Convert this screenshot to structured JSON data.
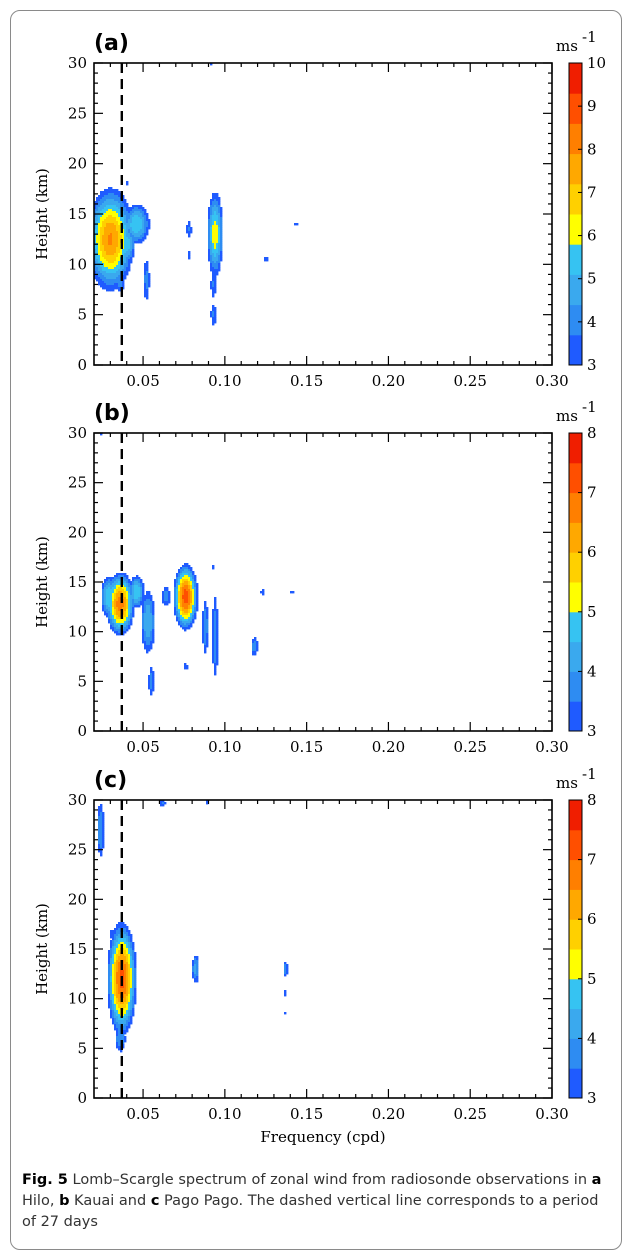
{
  "chart_data": [
    {
      "type": "heatmap",
      "panel_label": "(a)",
      "xlabel": "",
      "ylabel": "Height (km)",
      "xlim": [
        0.02,
        0.3
      ],
      "ylim": [
        0,
        30
      ],
      "x_ticks": [
        "0.05",
        "0.10",
        "0.15",
        "0.20",
        "0.25",
        "0.30"
      ],
      "y_ticks": [
        "0",
        "5",
        "10",
        "15",
        "20",
        "25",
        "30"
      ],
      "colorbar": {
        "unit": "ms",
        "unit_exp": "-1",
        "min": 3,
        "max": 10,
        "ticks": [
          "3",
          "4",
          "5",
          "6",
          "7",
          "8",
          "9",
          "10"
        ]
      },
      "dashed_line_x": 0.037,
      "features": [
        {
          "x": 0.03,
          "y": 12.5,
          "wx": 0.009,
          "wy": 3.2,
          "peak": 8.0
        },
        {
          "x": 0.046,
          "y": 14.0,
          "wx": 0.006,
          "wy": 1.5,
          "peak": 5.8
        },
        {
          "x": 0.04,
          "y": 12.0,
          "wx": 0.004,
          "wy": 1.6,
          "peak": 5.5
        },
        {
          "x": 0.036,
          "y": 8.5,
          "wx": 0.003,
          "wy": 1.3,
          "peak": 4.2
        },
        {
          "x": 0.052,
          "y": 8.5,
          "wx": 0.002,
          "wy": 2.2,
          "peak": 4.0
        },
        {
          "x": 0.094,
          "y": 13.0,
          "wx": 0.0035,
          "wy": 3.0,
          "peak": 6.3
        },
        {
          "x": 0.093,
          "y": 8.0,
          "wx": 0.002,
          "wy": 1.5,
          "peak": 3.8
        },
        {
          "x": 0.093,
          "y": 5.0,
          "wx": 0.002,
          "wy": 1.2,
          "peak": 3.8
        },
        {
          "x": 0.078,
          "y": 13.5,
          "wx": 0.0018,
          "wy": 1.0,
          "peak": 3.8
        },
        {
          "x": 0.078,
          "y": 11.0,
          "wx": 0.0012,
          "wy": 0.6,
          "peak": 3.5
        },
        {
          "x": 0.125,
          "y": 10.5,
          "wx": 0.0015,
          "wy": 0.4,
          "peak": 3.5
        },
        {
          "x": 0.143,
          "y": 14.0,
          "wx": 0.002,
          "wy": 0.3,
          "peak": 3.5
        },
        {
          "x": 0.04,
          "y": 18.0,
          "wx": 0.0012,
          "wy": 0.3,
          "peak": 3.5
        },
        {
          "x": 0.092,
          "y": 30.0,
          "wx": 0.0015,
          "wy": 0.25,
          "peak": 3.5
        }
      ]
    },
    {
      "type": "heatmap",
      "panel_label": "(b)",
      "xlabel": "",
      "ylabel": "Height (km)",
      "xlim": [
        0.02,
        0.3
      ],
      "ylim": [
        0,
        30
      ],
      "x_ticks": [
        "0.05",
        "0.10",
        "0.15",
        "0.20",
        "0.25",
        "0.30"
      ],
      "y_ticks": [
        "0",
        "5",
        "10",
        "15",
        "20",
        "25",
        "30"
      ],
      "colorbar": {
        "unit": "ms",
        "unit_exp": "-1",
        "min": 3,
        "max": 8,
        "ticks": [
          "3",
          "4",
          "5",
          "6",
          "7",
          "8"
        ]
      },
      "dashed_line_x": 0.037,
      "features": [
        {
          "x": 0.036,
          "y": 12.8,
          "wx": 0.006,
          "wy": 2.2,
          "peak": 6.8
        },
        {
          "x": 0.029,
          "y": 13.5,
          "wx": 0.004,
          "wy": 1.8,
          "peak": 5.0
        },
        {
          "x": 0.046,
          "y": 14.0,
          "wx": 0.004,
          "wy": 1.4,
          "peak": 5.0
        },
        {
          "x": 0.053,
          "y": 11.0,
          "wx": 0.004,
          "wy": 3.0,
          "peak": 4.5
        },
        {
          "x": 0.055,
          "y": 5.0,
          "wx": 0.002,
          "wy": 1.8,
          "peak": 3.8
        },
        {
          "x": 0.076,
          "y": 13.5,
          "wx": 0.005,
          "wy": 2.2,
          "peak": 7.3
        },
        {
          "x": 0.076,
          "y": 6.5,
          "wx": 0.0015,
          "wy": 0.6,
          "peak": 3.5
        },
        {
          "x": 0.064,
          "y": 13.5,
          "wx": 0.003,
          "wy": 1.2,
          "peak": 3.8
        },
        {
          "x": 0.088,
          "y": 10.5,
          "wx": 0.002,
          "wy": 3.0,
          "peak": 4.0
        },
        {
          "x": 0.094,
          "y": 9.5,
          "wx": 0.002,
          "wy": 4.5,
          "peak": 4.0
        },
        {
          "x": 0.093,
          "y": 16.5,
          "wx": 0.002,
          "wy": 0.2,
          "peak": 3.5
        },
        {
          "x": 0.118,
          "y": 8.5,
          "wx": 0.0025,
          "wy": 1.2,
          "peak": 3.8
        },
        {
          "x": 0.123,
          "y": 14.0,
          "wx": 0.0015,
          "wy": 0.4,
          "peak": 3.5
        },
        {
          "x": 0.141,
          "y": 14.0,
          "wx": 0.0015,
          "wy": 0.3,
          "peak": 3.5
        },
        {
          "x": 0.024,
          "y": 30.0,
          "wx": 0.0008,
          "wy": 0.4,
          "peak": 3.5
        }
      ]
    },
    {
      "type": "heatmap",
      "panel_label": "(c)",
      "xlabel": "Frequency (cpd)",
      "ylabel": "Height (km)",
      "xlim": [
        0.02,
        0.3
      ],
      "ylim": [
        0,
        30
      ],
      "x_ticks": [
        "0.05",
        "0.10",
        "0.15",
        "0.20",
        "0.25",
        "0.30"
      ],
      "y_ticks": [
        "0",
        "5",
        "10",
        "15",
        "20",
        "25",
        "30"
      ],
      "colorbar": {
        "unit": "ms",
        "unit_exp": "-1",
        "min": 3,
        "max": 8,
        "ticks": [
          "3",
          "4",
          "5",
          "6",
          "7",
          "8"
        ]
      },
      "dashed_line_x": 0.037,
      "features": [
        {
          "x": 0.037,
          "y": 12.0,
          "wx": 0.006,
          "wy": 3.8,
          "peak": 7.2
        },
        {
          "x": 0.036,
          "y": 6.0,
          "wx": 0.0035,
          "wy": 1.5,
          "peak": 4.0
        },
        {
          "x": 0.031,
          "y": 16.5,
          "wx": 0.002,
          "wy": 0.6,
          "peak": 3.6
        },
        {
          "x": 0.024,
          "y": 27.0,
          "wx": 0.0025,
          "wy": 3.0,
          "peak": 4.0
        },
        {
          "x": 0.082,
          "y": 13.0,
          "wx": 0.0022,
          "wy": 1.5,
          "peak": 4.2
        },
        {
          "x": 0.137,
          "y": 13.0,
          "wx": 0.0015,
          "wy": 1.0,
          "peak": 3.8
        },
        {
          "x": 0.137,
          "y": 10.5,
          "wx": 0.001,
          "wy": 0.5,
          "peak": 3.5
        },
        {
          "x": 0.137,
          "y": 8.6,
          "wx": 0.0008,
          "wy": 0.2,
          "peak": 3.5
        },
        {
          "x": 0.062,
          "y": 29.7,
          "wx": 0.0022,
          "wy": 0.5,
          "peak": 3.6
        },
        {
          "x": 0.089,
          "y": 29.9,
          "wx": 0.0018,
          "wy": 0.4,
          "peak": 3.5
        }
      ]
    }
  ],
  "caption": {
    "fig": "Fig. 5",
    "text1": "  Lomb–Scargle spectrum of zonal wind from radiosonde observations in ",
    "a": "a",
    "site_a": " Hilo, ",
    "b": "b",
    "site_b": " Kauai and ",
    "c": "c",
    "site_c": " Pago Pago. The dashed vertical line corresponds to a period of 27 days"
  }
}
